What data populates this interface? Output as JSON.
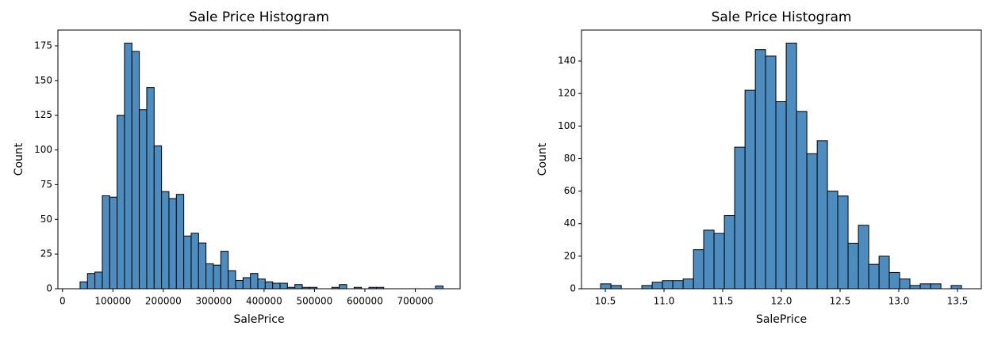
{
  "chart_data": [
    {
      "type": "histogram",
      "title": "Sale Price Histogram",
      "x_label": "SalePrice",
      "y_label": "Count",
      "color": "#4c8cbf",
      "edgecolor": "#000000",
      "bins": [
        34900,
        49596,
        64292,
        78988,
        93684,
        108380,
        123076,
        137772,
        152468,
        167164,
        181860,
        196556,
        211252,
        225948,
        240644,
        255340,
        270036,
        284732,
        299428,
        314124,
        328820,
        343516,
        358212,
        372908,
        387604,
        402300,
        416996,
        431692,
        446388,
        461084,
        475780,
        490476,
        505172,
        519868,
        534564,
        549260,
        563956,
        578652,
        593348,
        608044,
        622740,
        637436,
        652132,
        666828,
        681524,
        696220,
        710916,
        725612,
        740308,
        755000
      ],
      "values": [
        5,
        11,
        12,
        67,
        66,
        125,
        177,
        171,
        129,
        145,
        103,
        70,
        65,
        68,
        38,
        40,
        33,
        18,
        17,
        27,
        13,
        6,
        8,
        11,
        7,
        5,
        4,
        4,
        1,
        3,
        1,
        1,
        0,
        0,
        1,
        3,
        0,
        1,
        0,
        1,
        1,
        0,
        0,
        0,
        0,
        0,
        0,
        0,
        2
      ],
      "xlim": [
        -9100,
        789000
      ],
      "xticks": [
        0,
        100000,
        200000,
        300000,
        400000,
        500000,
        600000,
        700000
      ],
      "ylim": [
        0,
        186.4
      ],
      "yticks": [
        0,
        25,
        50,
        75,
        100,
        125,
        150,
        175
      ]
    },
    {
      "type": "histogram",
      "title": "Sale Price Histogram",
      "x_label": "SalePrice",
      "y_label": "Count",
      "color": "#4c8cbf",
      "edgecolor": "#000000",
      "bins": [
        10.46,
        10.548,
        10.636,
        10.724,
        10.811,
        10.899,
        10.987,
        11.075,
        11.163,
        11.251,
        11.338,
        11.426,
        11.514,
        11.602,
        11.69,
        11.778,
        11.865,
        11.953,
        12.041,
        12.129,
        12.217,
        12.305,
        12.392,
        12.48,
        12.568,
        12.656,
        12.744,
        12.832,
        12.919,
        13.007,
        13.095,
        13.183,
        13.271,
        13.359,
        13.446,
        13.534
      ],
      "values": [
        3,
        2,
        0,
        0,
        2,
        4,
        5,
        5,
        6,
        24,
        36,
        34,
        45,
        87,
        122,
        147,
        143,
        115,
        151,
        109,
        83,
        91,
        60,
        57,
        28,
        39,
        15,
        20,
        10,
        6,
        2,
        3,
        3,
        0,
        2
      ],
      "xlim": [
        10.297,
        13.703
      ],
      "xticks": [
        10.5,
        {
          "value": 11,
          "label": "11.0"
        },
        11.5,
        {
          "value": 12,
          "label": "12.0"
        },
        12.5,
        {
          "value": 13,
          "label": "13.0"
        },
        13.5
      ],
      "ylim": [
        0,
        159
      ],
      "yticks": [
        0,
        20,
        40,
        60,
        80,
        100,
        120,
        140
      ]
    }
  ]
}
